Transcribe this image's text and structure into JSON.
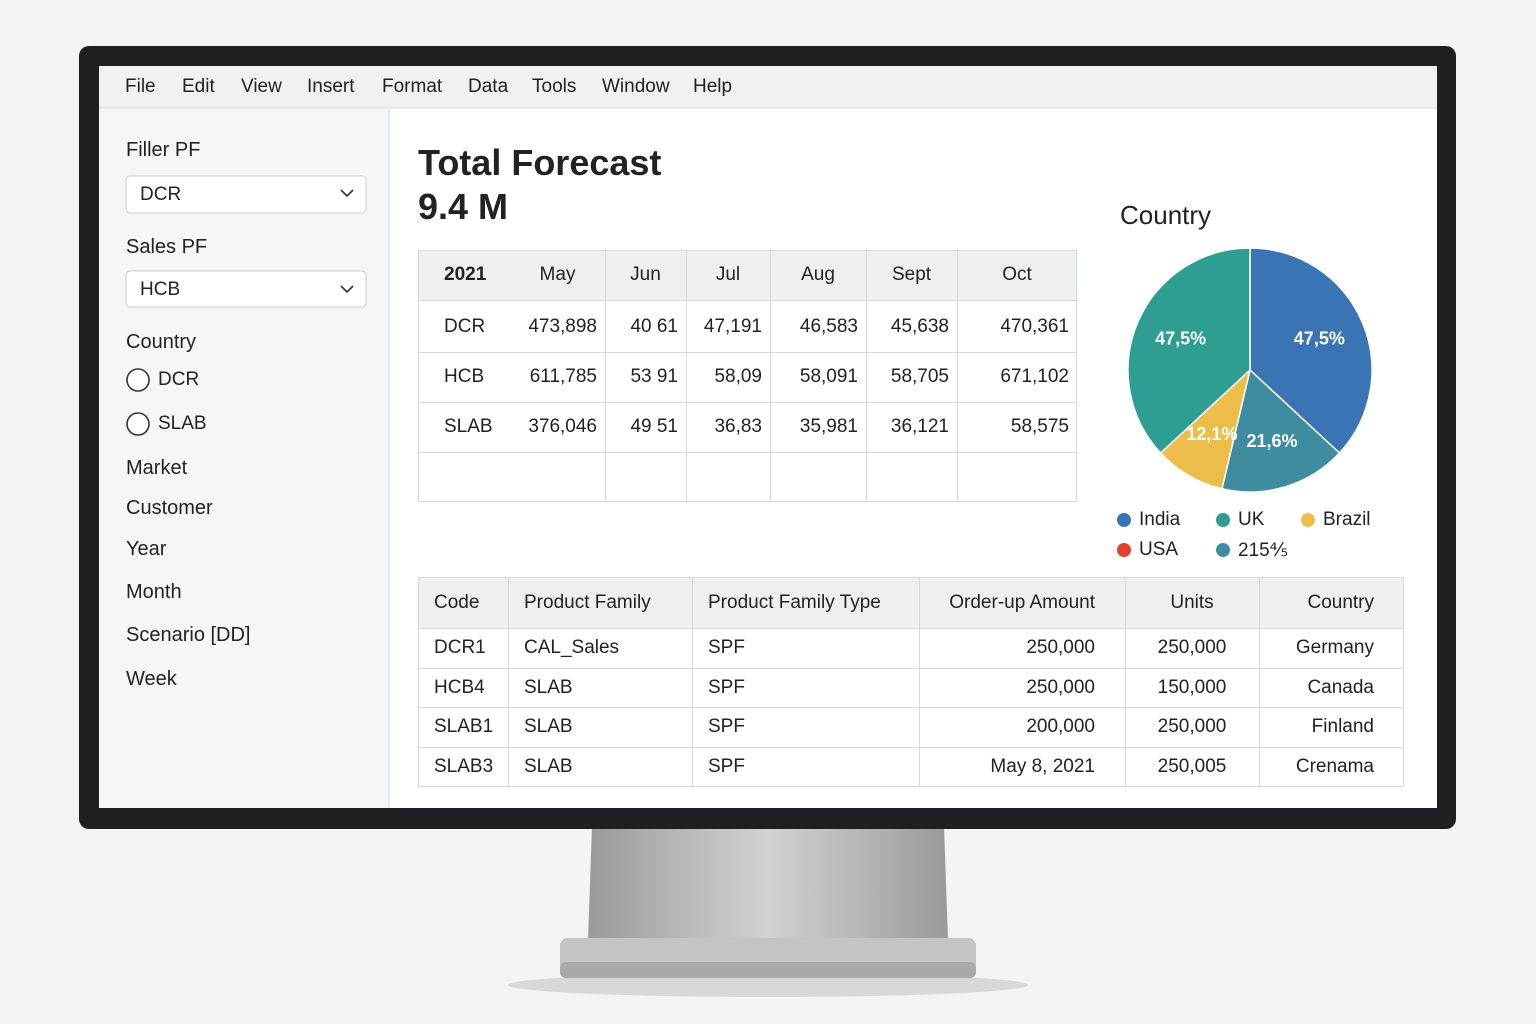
{
  "menu": [
    "File",
    "Edit",
    "View",
    "Insert",
    "Format",
    "Data",
    "Tools",
    "Window",
    "Help"
  ],
  "sidebar": {
    "filler_label": "Filler PF",
    "filler_value": "DCR",
    "sales_label": "Sales PF",
    "sales_value": "HCB",
    "country_label": "Country",
    "country_options": [
      "DCR",
      "SLAB"
    ],
    "links": [
      "Market",
      "Customer",
      "Year",
      "Month",
      "Scenario [DD]",
      "Week"
    ]
  },
  "summary": {
    "title": "Total Forecast",
    "value": "9.4 M"
  },
  "forecast_table": {
    "header": [
      "2021",
      "May",
      "Jun",
      "Jul",
      "Aug",
      "Sept",
      "Oct"
    ],
    "rows": [
      [
        "DCR",
        "473,898",
        "40 61",
        "47,191",
        "46,583",
        "45,638",
        "470,361"
      ],
      [
        "HCB",
        "611,785",
        "53 91",
        "58,09",
        "58,091",
        "58,705",
        "671,102"
      ],
      [
        "SLAB",
        "376,046",
        "49 51",
        "36,83",
        "35,981",
        "36,121",
        "58,575"
      ]
    ]
  },
  "chart_data": {
    "type": "pie",
    "title": "Country",
    "values": [
      47.5,
      21.6,
      12.1,
      47.5
    ],
    "value_labels": [
      "47,5%",
      "21,6%",
      "12,1%",
      "47,5%"
    ],
    "colors": [
      "#3b74b4",
      "#3e8ca0",
      "#edbd4b",
      "#2e9e93"
    ],
    "legend": [
      {
        "name": "India",
        "color": "#3b74b4"
      },
      {
        "name": "UK",
        "color": "#2e9e93"
      },
      {
        "name": "Brazil",
        "color": "#edbd4b"
      },
      {
        "name": "USA",
        "color": "#e0432d"
      },
      {
        "name": "215⅘",
        "color": "#3e8ca0"
      }
    ]
  },
  "orders_table": {
    "header": [
      "Code",
      "Product Family",
      "Product Family Type",
      "Order-up Amount",
      "Units",
      "Country"
    ],
    "rows": [
      [
        "DCR1",
        "CAL_Sales",
        "SPF",
        "250,000",
        "250,000",
        "Germany"
      ],
      [
        "HCB4",
        "SLAB",
        "SPF",
        "250,000",
        "150,000",
        "Canada"
      ],
      [
        "SLAB1",
        "SLAB",
        "SPF",
        "200,000",
        "250,000",
        "Finland"
      ],
      [
        "SLAB3",
        "SLAB",
        "SPF",
        "May 8, 2021",
        "250,005",
        "Crenama"
      ]
    ]
  }
}
